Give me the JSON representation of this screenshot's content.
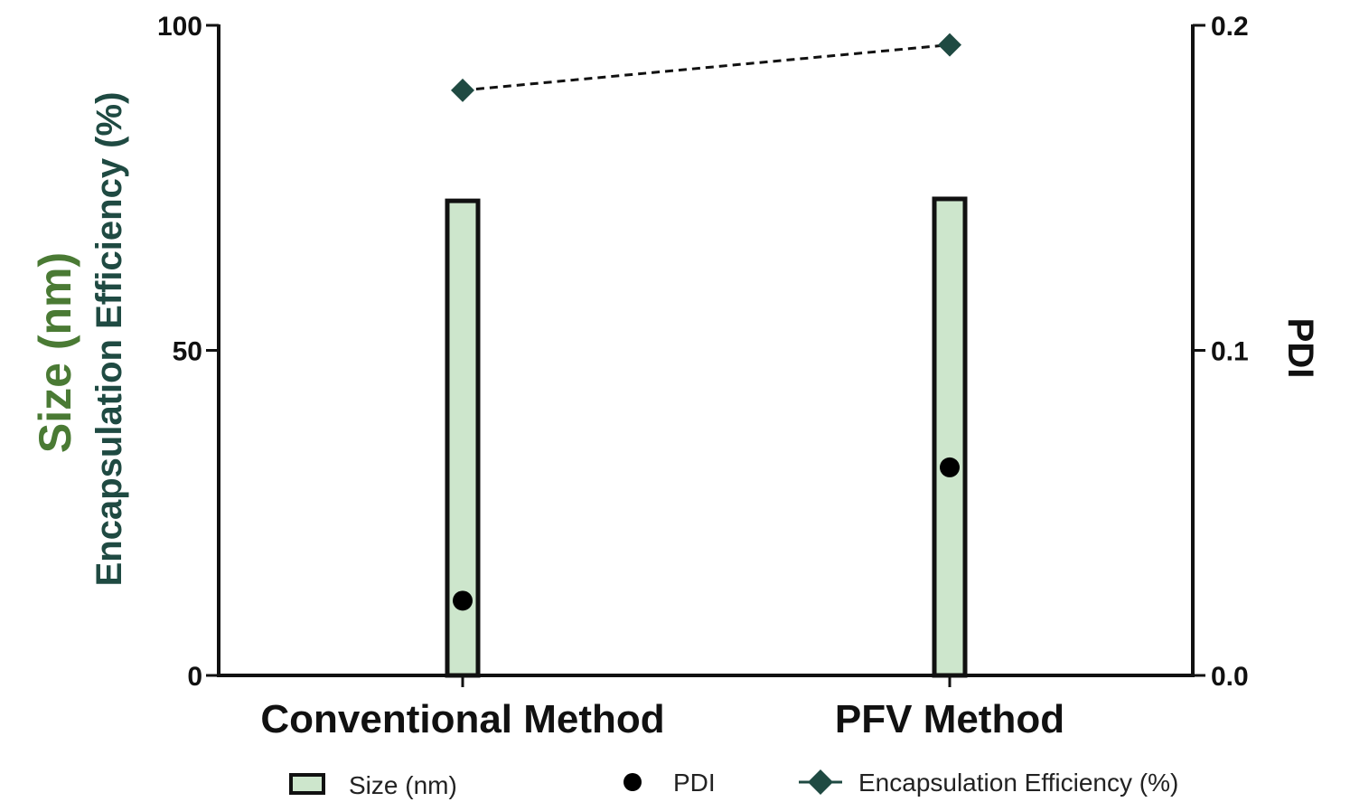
{
  "chart_data": {
    "type": "bar",
    "categories": [
      "Conventional Method",
      "PFV Method"
    ],
    "left_axis": {
      "label_size": "Size (nm)",
      "label_ee": "Encapsulation Efficiency (%)",
      "ylim": [
        0,
        100
      ],
      "ticks": [
        "0",
        "50",
        "100"
      ],
      "tick_values": [
        0,
        50,
        100
      ],
      "label_size_color": "#4a7a34",
      "label_ee_color": "#1f4a42"
    },
    "right_axis": {
      "label": "PDI",
      "ylim": [
        0,
        0.2
      ],
      "ticks": [
        "0.0",
        "0.1",
        "0.2"
      ],
      "tick_values": [
        0,
        0.1,
        0.2
      ]
    },
    "series": [
      {
        "name": "Size (nm)",
        "type": "bar",
        "axis": "left",
        "values": [
          73,
          73.3
        ],
        "fill": "#cde6cc",
        "stroke": "#111111"
      },
      {
        "name": "PDI",
        "type": "scatter",
        "axis": "right",
        "values": [
          0.023,
          0.064
        ],
        "color": "#000000"
      },
      {
        "name": "Encapsulation Efficiency (%)",
        "type": "line",
        "axis": "left",
        "values": [
          90,
          97
        ],
        "color": "#1f4a42",
        "dashed": true,
        "marker": "diamond"
      }
    ],
    "legend": {
      "placement": "bottom",
      "items": [
        "Size (nm)",
        "PDI",
        "Encapsulation Efficiency (%)"
      ]
    }
  }
}
